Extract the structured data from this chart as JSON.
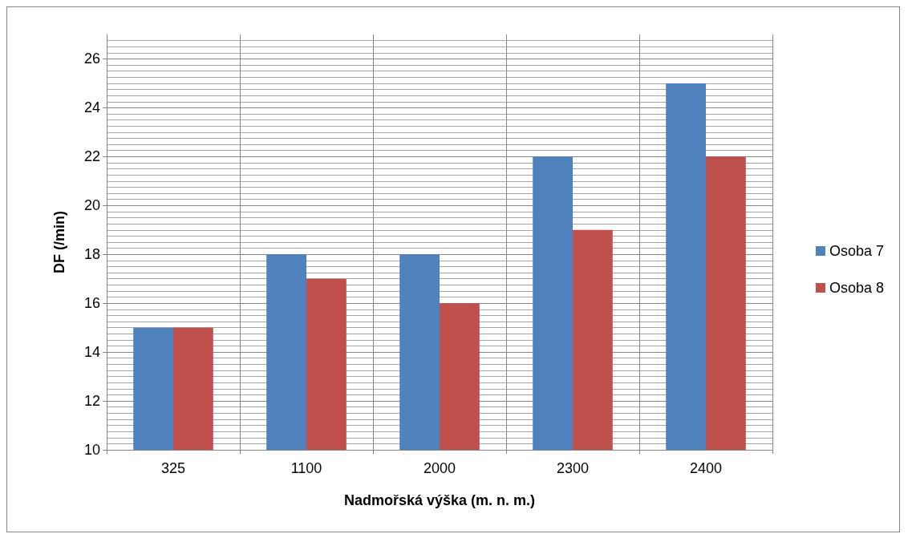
{
  "chart_data": {
    "type": "bar",
    "xlabel": "Nadmořská výška (m. n. m.)",
    "ylabel": "DF (/min)",
    "categories": [
      "325",
      "1100",
      "2000",
      "2300",
      "2400"
    ],
    "series": [
      {
        "name": "Osoba 7",
        "color": "#4f81bd",
        "values": [
          15,
          18,
          18,
          22,
          25
        ]
      },
      {
        "name": "Osoba 8",
        "color": "#c0504d",
        "values": [
          15,
          17,
          16,
          19,
          22
        ]
      }
    ],
    "ylim": [
      10,
      27
    ],
    "yticks": [
      10,
      12,
      14,
      16,
      18,
      20,
      22,
      24,
      26
    ],
    "grid": true,
    "legend": "right"
  }
}
